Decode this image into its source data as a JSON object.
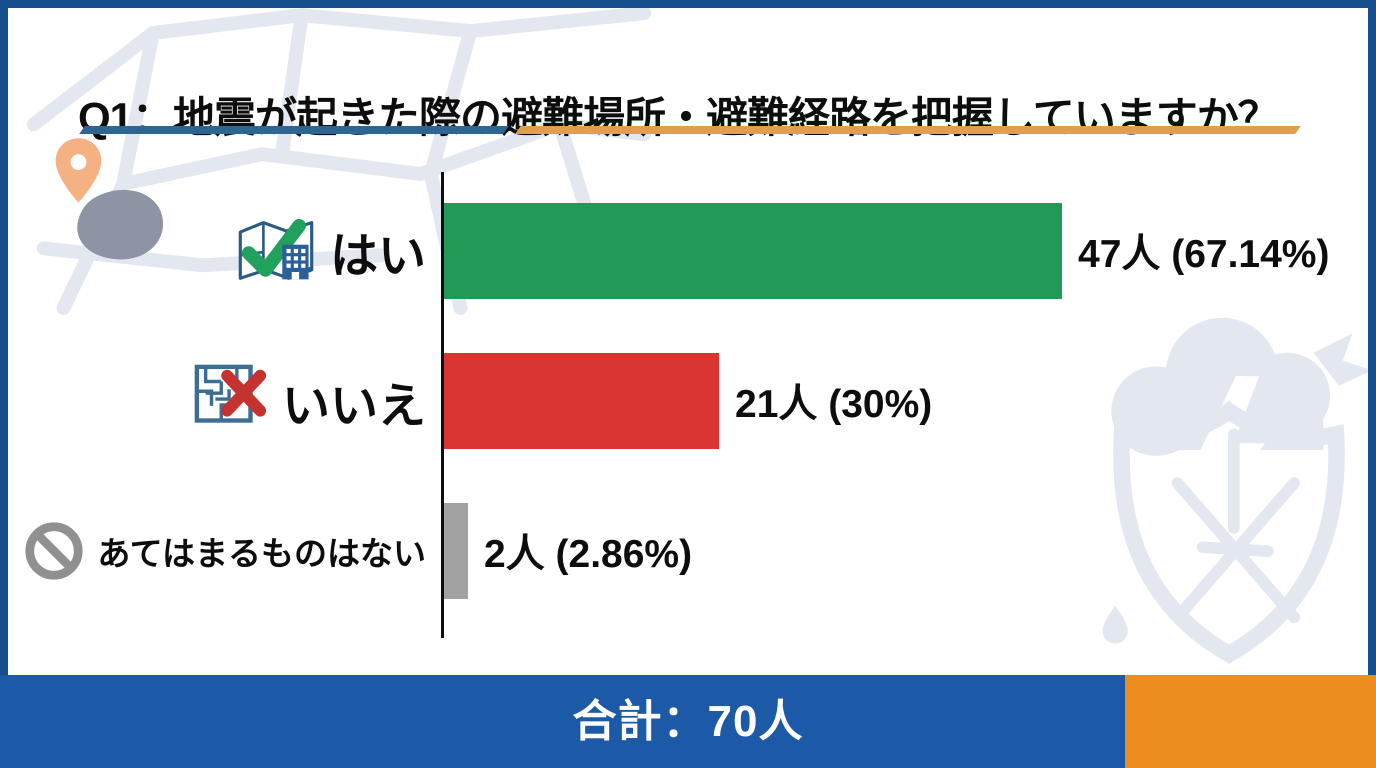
{
  "chart_data": {
    "type": "bar",
    "orientation": "horizontal",
    "title": "Q1：地震が起きた際の避難場所・避難経路を把握していますか？",
    "categories": [
      "はい",
      "いいえ",
      "あてはまるものはない"
    ],
    "values": [
      47,
      21,
      2
    ],
    "percentages": [
      67.14,
      30,
      2.86
    ],
    "value_labels": [
      "47人 (67.14%)",
      "21人 (30%)",
      "2人 (2.86%)"
    ],
    "bar_colors": [
      "#229A56",
      "#D93533",
      "#A2A2A2"
    ],
    "icon_names": [
      "map-check-icon",
      "maze-x-icon",
      "prohibition-icon"
    ],
    "xmax": 47,
    "total": 70,
    "legend": "none",
    "grid": "off"
  },
  "footer": {
    "total_label": "合計：70人"
  },
  "colors": {
    "frame": "#174E8C",
    "banner_blue": "#1C59A6",
    "banner_orange": "#EE8D1F",
    "underline_blue": "#2E6593",
    "underline_orange": "#DFA04C",
    "bar_green": "#229A56",
    "bar_red": "#D93533",
    "bar_gray": "#A2A2A2",
    "axis": "#0E0E0E",
    "watermark": "#E3E7EF"
  }
}
